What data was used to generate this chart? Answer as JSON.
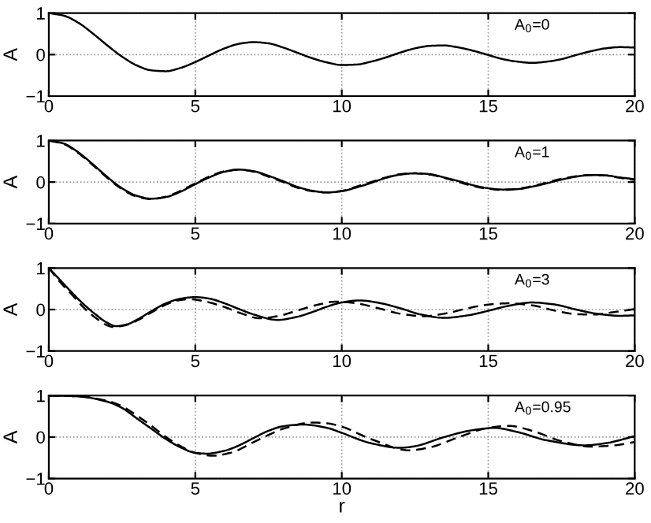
{
  "chart_data": [
    {
      "type": "line",
      "ylabel": "A",
      "annotations": [
        "A$_{0}$=0"
      ],
      "xlim": [
        0,
        20
      ],
      "ylim": [
        -1,
        1
      ],
      "xticks": [
        0,
        5,
        10,
        15,
        20
      ],
      "yticks": [
        -1,
        0,
        1
      ],
      "grid": true,
      "series": [
        {
          "color": "#000000",
          "line_style": "solid",
          "x": [
            0,
            0.5,
            1,
            1.5,
            2,
            2.5,
            3,
            3.5,
            4,
            4.5,
            5,
            5.5,
            6,
            6.5,
            7,
            7.5,
            8,
            8.5,
            9,
            9.5,
            10,
            10.5,
            11,
            11.5,
            12,
            12.5,
            13,
            13.5,
            14,
            14.5,
            15,
            15.5,
            16,
            16.5,
            17,
            17.5,
            18,
            18.5,
            19,
            19.5,
            20
          ],
          "values": [
            1,
            0.94,
            0.77,
            0.51,
            0.22,
            -0.05,
            -0.26,
            -0.38,
            -0.4,
            -0.32,
            -0.18,
            -0.01,
            0.15,
            0.26,
            0.3,
            0.27,
            0.17,
            0.04,
            -0.09,
            -0.19,
            -0.25,
            -0.24,
            -0.17,
            -0.07,
            0.05,
            0.15,
            0.21,
            0.22,
            0.17,
            0.09,
            -0.01,
            -0.11,
            -0.17,
            -0.2,
            -0.17,
            -0.11,
            -0.01,
            0.08,
            0.15,
            0.18,
            0.17
          ]
        }
      ]
    },
    {
      "type": "line",
      "ylabel": "A",
      "annotations": [
        "A$_{0}$=1"
      ],
      "xlim": [
        0,
        20
      ],
      "ylim": [
        -1,
        1
      ],
      "xticks": [
        0,
        5,
        10,
        15,
        20
      ],
      "yticks": [
        -1,
        0,
        1
      ],
      "grid": true,
      "series": [
        {
          "color": "#000000",
          "line_style": "solid",
          "x": [
            0,
            0.5,
            1,
            1.5,
            2,
            2.5,
            3,
            3.5,
            4,
            4.5,
            5,
            5.5,
            6,
            6.5,
            7,
            7.5,
            8,
            8.5,
            9,
            9.5,
            10,
            10.5,
            11,
            11.5,
            12,
            12.5,
            13,
            13.5,
            14,
            14.5,
            15,
            15.5,
            16,
            16.5,
            17,
            17.5,
            18,
            18.5,
            19,
            19.5,
            20
          ],
          "values": [
            1,
            0.93,
            0.72,
            0.43,
            0.12,
            -0.15,
            -0.33,
            -0.4,
            -0.36,
            -0.23,
            -0.05,
            0.12,
            0.25,
            0.3,
            0.26,
            0.15,
            0.02,
            -0.12,
            -0.21,
            -0.25,
            -0.22,
            -0.13,
            -0.02,
            0.1,
            0.18,
            0.21,
            0.19,
            0.11,
            0.02,
            -0.08,
            -0.15,
            -0.18,
            -0.17,
            -0.11,
            -0.03,
            0.06,
            0.13,
            0.17,
            0.16,
            0.11,
            0.07
          ]
        },
        {
          "color": "#000000",
          "line_style": "dashed",
          "x": [
            0,
            0.5,
            1,
            1.5,
            2,
            2.5,
            3,
            3.5,
            4,
            4.5,
            5,
            5.5,
            6,
            6.5,
            7,
            7.5,
            8,
            8.5,
            9,
            9.5,
            10,
            10.5,
            11,
            11.5,
            12,
            12.5,
            13,
            13.5,
            14,
            14.5,
            15,
            15.5,
            16,
            16.5,
            17,
            17.5,
            18,
            18.5,
            19,
            19.5,
            20
          ],
          "values": [
            1,
            0.92,
            0.7,
            0.41,
            0.1,
            -0.17,
            -0.35,
            -0.41,
            -0.35,
            -0.21,
            -0.03,
            0.14,
            0.26,
            0.3,
            0.25,
            0.13,
            0,
            -0.14,
            -0.22,
            -0.25,
            -0.21,
            -0.11,
            0,
            0.11,
            0.19,
            0.21,
            0.18,
            0.1,
            0,
            -0.1,
            -0.16,
            -0.19,
            -0.16,
            -0.1,
            -0.01,
            0.08,
            0.14,
            0.17,
            0.16,
            0.1,
            0.05
          ]
        }
      ]
    },
    {
      "type": "line",
      "ylabel": "A",
      "annotations": [
        "A$_{0}$=3"
      ],
      "xlim": [
        0,
        20
      ],
      "ylim": [
        -1,
        1
      ],
      "xticks": [
        0,
        5,
        10,
        15,
        20
      ],
      "yticks": [
        -1,
        0,
        1
      ],
      "grid": true,
      "series": [
        {
          "color": "#000000",
          "line_style": "solid",
          "x": [
            0,
            0.4,
            0.8,
            1.2,
            1.6,
            2,
            2.3,
            2.7,
            3,
            3.5,
            4,
            4.5,
            5,
            5.5,
            6,
            6.5,
            7,
            7.8,
            8.5,
            9,
            9.5,
            10,
            10.6,
            11.2,
            12,
            12.7,
            13.5,
            14.3,
            15,
            15.7,
            16.5,
            17.2,
            18,
            18.7,
            19.5,
            20
          ],
          "values": [
            1,
            0.7,
            0.4,
            0.12,
            -0.12,
            -0.32,
            -0.4,
            -0.35,
            -0.25,
            -0.04,
            0.15,
            0.26,
            0.3,
            0.26,
            0.15,
            0.01,
            -0.12,
            -0.25,
            -0.17,
            -0.06,
            0.07,
            0.17,
            0.22,
            0.17,
            0.03,
            -0.12,
            -0.2,
            -0.14,
            -0.03,
            0.09,
            0.17,
            0.13,
            0,
            -0.1,
            -0.15,
            -0.14
          ]
        },
        {
          "color": "#000000",
          "line_style": "dashed",
          "x": [
            0,
            0.4,
            0.8,
            1.2,
            1.6,
            2,
            2.2,
            2.6,
            3,
            3.5,
            4,
            4.4,
            4.8,
            5.3,
            6,
            6.6,
            7.2,
            7.8,
            8.5,
            9.2,
            9.8,
            10.5,
            11.2,
            12,
            12.8,
            13.5,
            14.3,
            15,
            15.7,
            16.5,
            17.3,
            18,
            18.6,
            19.3,
            20
          ],
          "values": [
            1,
            0.65,
            0.35,
            0.04,
            -0.2,
            -0.38,
            -0.42,
            -0.38,
            -0.27,
            -0.07,
            0.12,
            0.22,
            0.25,
            0.2,
            0.06,
            -0.1,
            -0.21,
            -0.16,
            -0.02,
            0.12,
            0.19,
            0.15,
            0.04,
            -0.1,
            -0.16,
            -0.1,
            0.03,
            0.12,
            0.15,
            0.1,
            -0.03,
            -0.11,
            -0.12,
            -0.06,
            0.01
          ]
        }
      ]
    },
    {
      "type": "line",
      "xlabel": "r",
      "ylabel": "A",
      "annotations": [
        "A$_{0}$=0.95"
      ],
      "xlim": [
        0,
        20
      ],
      "ylim": [
        -1,
        1
      ],
      "xticks": [
        0,
        5,
        10,
        15,
        20
      ],
      "yticks": [
        -1,
        0,
        1
      ],
      "grid": true,
      "series": [
        {
          "color": "#000000",
          "line_style": "solid",
          "x": [
            0,
            1,
            2,
            2.5,
            3,
            3.5,
            4,
            4.5,
            5,
            5.4,
            6,
            6.5,
            7,
            7.5,
            8,
            8.7,
            9.5,
            10,
            11,
            12,
            12.5,
            13.5,
            14.5,
            15.2,
            16,
            17,
            18.3,
            19,
            20
          ],
          "values": [
            1,
            0.98,
            0.85,
            0.7,
            0.45,
            0.2,
            -0.05,
            -0.25,
            -0.38,
            -0.4,
            -0.33,
            -0.2,
            -0.02,
            0.15,
            0.26,
            0.3,
            0.22,
            0.1,
            -0.15,
            -0.26,
            -0.22,
            0,
            0.17,
            0.22,
            0.12,
            -0.08,
            -0.2,
            -0.15,
            0.02
          ]
        },
        {
          "color": "#000000",
          "line_style": "dashed",
          "x": [
            0,
            1,
            2,
            2.5,
            3,
            3.5,
            4,
            4.5,
            5,
            5.6,
            6.2,
            7,
            7.5,
            8,
            9,
            9.5,
            10,
            11,
            12.3,
            13,
            14,
            15,
            15.7,
            16.5,
            17.5,
            18.5,
            19.3,
            20
          ],
          "values": [
            1,
            0.98,
            0.87,
            0.74,
            0.52,
            0.27,
            0,
            -0.22,
            -0.38,
            -0.45,
            -0.38,
            -0.12,
            0.05,
            0.2,
            0.35,
            0.33,
            0.25,
            -0.05,
            -0.32,
            -0.25,
            0,
            0.22,
            0.27,
            0.15,
            -0.1,
            -0.23,
            -0.2,
            -0.12
          ]
        }
      ]
    }
  ]
}
